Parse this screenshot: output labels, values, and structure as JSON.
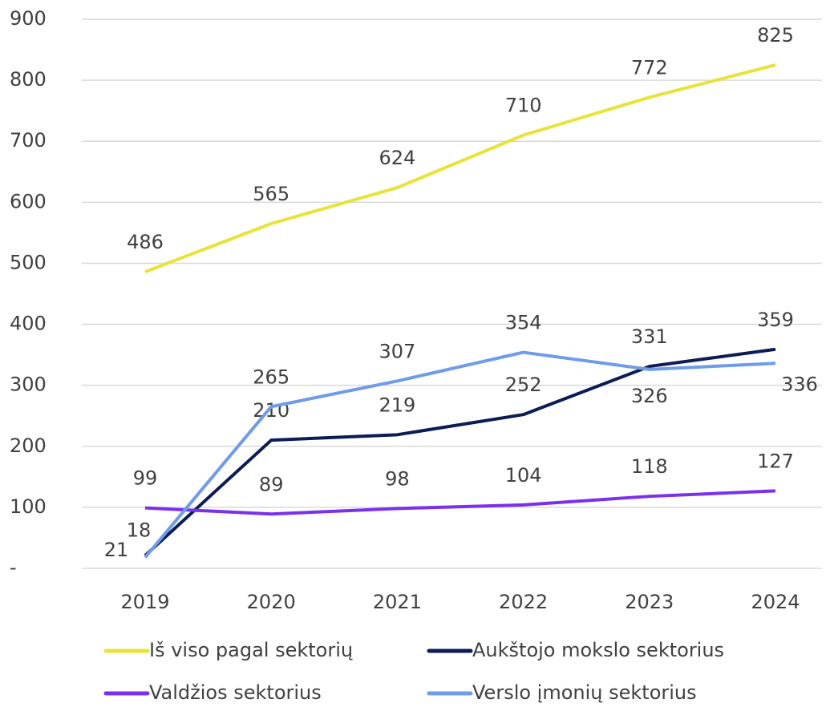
{
  "chart_data": {
    "type": "line",
    "categories": [
      "2019",
      "2020",
      "2021",
      "2022",
      "2023",
      "2024"
    ],
    "series": [
      {
        "name": "Iš viso pagal sektorių",
        "color": "#e8e33a",
        "values": [
          486,
          565,
          624,
          710,
          772,
          825
        ]
      },
      {
        "name": "Aukštojo mokslo sektorius",
        "color": "#0c1c55",
        "values": [
          21,
          210,
          219,
          252,
          331,
          359
        ]
      },
      {
        "name": "Valdžios sektorius",
        "color": "#7a30ec",
        "values": [
          99,
          89,
          98,
          104,
          118,
          127
        ]
      },
      {
        "name": "Verslo įmonių sektorius",
        "color": "#6f9ce8",
        "values": [
          18,
          265,
          307,
          354,
          326,
          336
        ]
      }
    ],
    "ylim": [
      0,
      900
    ],
    "yticks": [
      {
        "value": 0,
        "label": "-"
      },
      100,
      200,
      300,
      400,
      500,
      600,
      700,
      800,
      900
    ],
    "grid": true
  }
}
